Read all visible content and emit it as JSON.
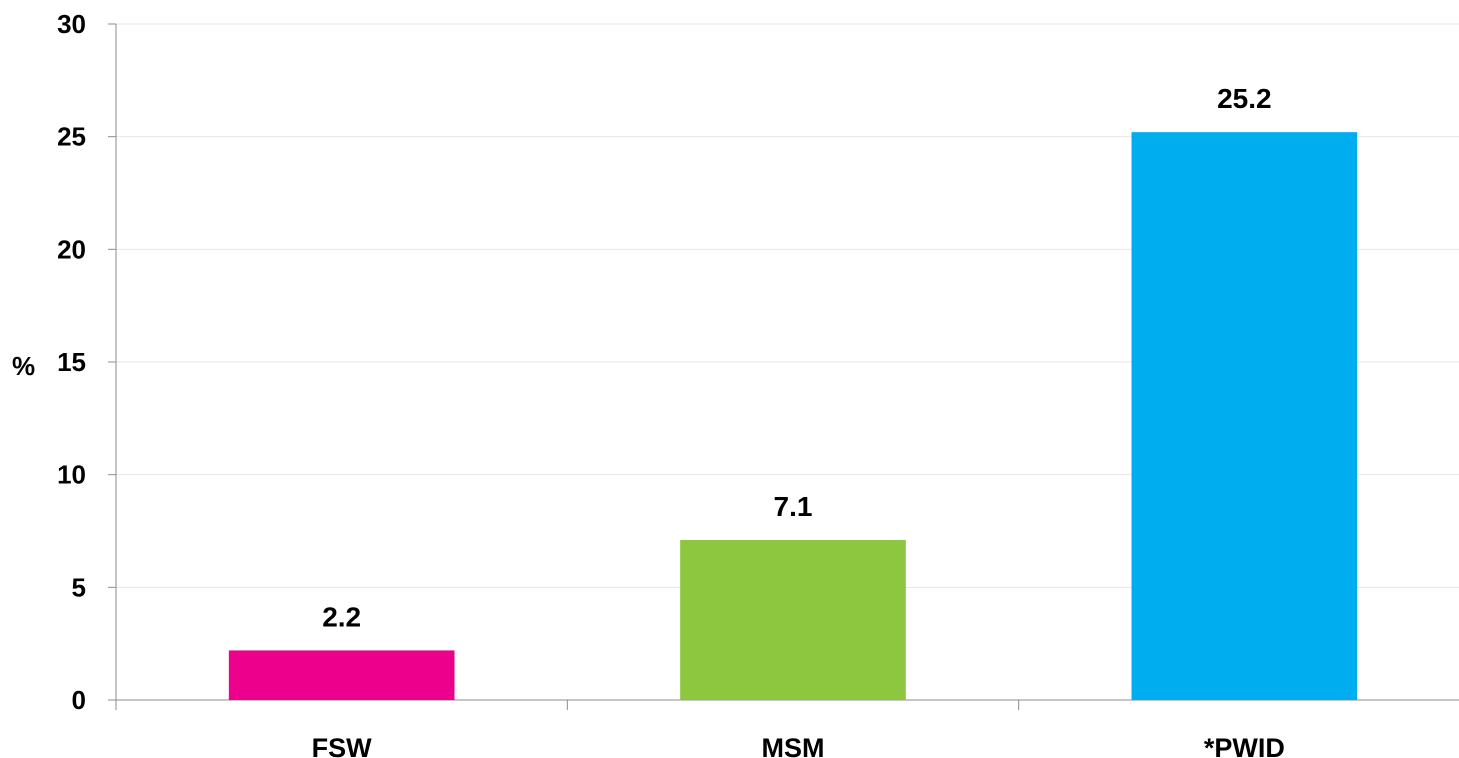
{
  "chart_data": {
    "type": "bar",
    "title": "",
    "xlabel": "",
    "ylabel": "%",
    "categories": [
      "FSW",
      "MSM",
      "*PWID"
    ],
    "values": [
      2.2,
      7.1,
      25.2
    ],
    "data_labels": [
      "2.2",
      "7.1",
      "25.2"
    ],
    "colors": [
      "#ec008c",
      "#8dc63f",
      "#00aeef"
    ],
    "ylim": [
      0,
      30
    ],
    "yticks": [
      0,
      5,
      10,
      15,
      20,
      25,
      30
    ],
    "ytick_labels": [
      "0",
      "5",
      "10",
      "15",
      "20",
      "25",
      "30"
    ],
    "grid": true,
    "legend": "none"
  }
}
